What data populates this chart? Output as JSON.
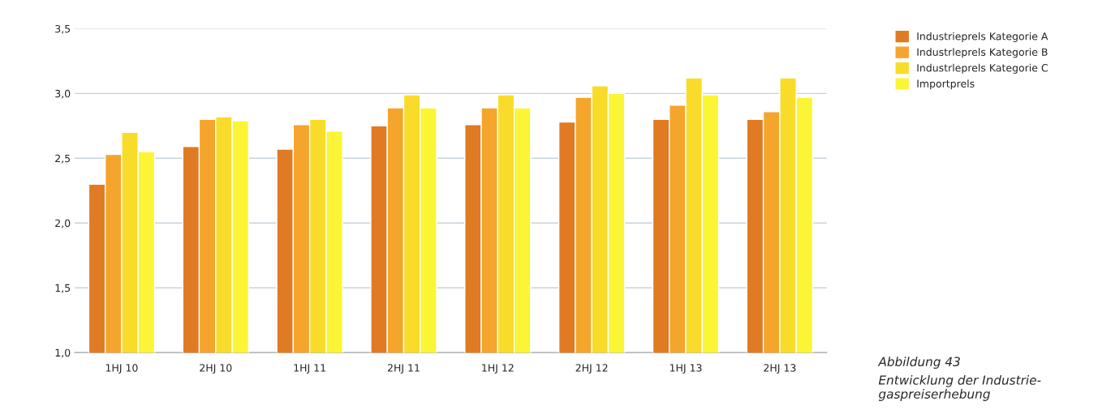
{
  "chart_data": {
    "type": "bar",
    "categories": [
      "1HJ 10",
      "2HJ 10",
      "1HJ 11",
      "2HJ 11",
      "1HJ 12",
      "2HJ 12",
      "1HJ 13",
      "2HJ 13"
    ],
    "series": [
      {
        "name": "Industrieprels Kategorie A",
        "color": "#e07b24",
        "values": [
          2.3,
          2.59,
          2.57,
          2.75,
          2.76,
          2.78,
          2.8,
          2.8
        ]
      },
      {
        "name": "Industrleprels Kategorie B",
        "color": "#f5a42c",
        "values": [
          2.53,
          2.8,
          2.76,
          2.89,
          2.89,
          2.97,
          2.91,
          2.86
        ]
      },
      {
        "name": "Industrleprels Kategorie C",
        "color": "#f9dc2a",
        "values": [
          2.7,
          2.82,
          2.8,
          2.99,
          2.99,
          3.06,
          3.12,
          3.12
        ]
      },
      {
        "name": "Importprels",
        "color": "#fbf535",
        "values": [
          2.55,
          2.79,
          2.71,
          2.89,
          2.89,
          3.0,
          2.99,
          2.97
        ]
      }
    ],
    "ylim": [
      1.0,
      3.5
    ],
    "yticks": [
      {
        "value": 1.0,
        "label": "1,0"
      },
      {
        "value": 1.5,
        "label": "1,5"
      },
      {
        "value": 2.0,
        "label": "2,0"
      },
      {
        "value": 2.5,
        "label": "2,5"
      },
      {
        "value": 3.0,
        "label": "3,0"
      },
      {
        "value": 3.5,
        "label": "3,5"
      }
    ],
    "grid": "y",
    "legend": "right",
    "annotations": [
      "Abbildung 43",
      "Entwicklung der Industrie-\ngaspreiserhebung"
    ]
  }
}
